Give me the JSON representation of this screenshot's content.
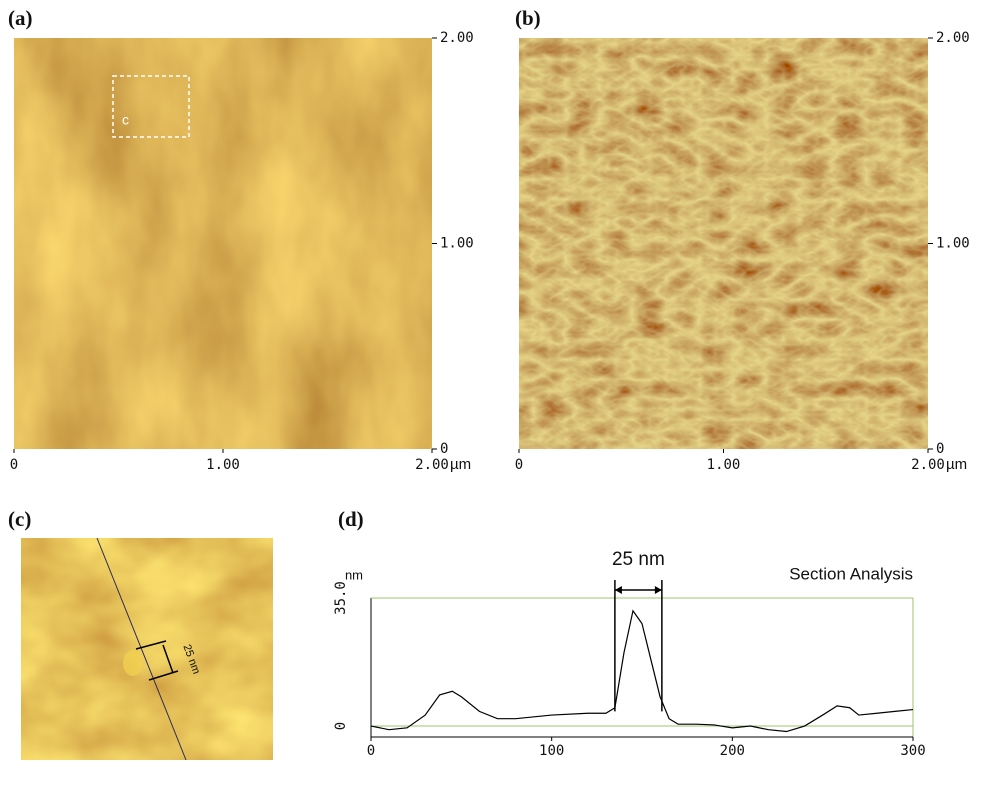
{
  "chart_data": [
    {
      "type": "image",
      "label": "(a)",
      "annotation": "c",
      "x_unit": "µm",
      "xlim": [
        0,
        2
      ],
      "ylim": [
        0,
        2
      ],
      "xticks": [
        0,
        {
          "value": 1,
          "label": "1.00"
        },
        {
          "value": 2,
          "label": "2.00"
        }
      ],
      "yticks": [
        0,
        {
          "value": 1,
          "label": "1.00"
        },
        {
          "value": 2,
          "label": "2.00"
        }
      ]
    },
    {
      "type": "image",
      "label": "(b)",
      "x_unit": "µm",
      "xlim": [
        0,
        2
      ],
      "ylim": [
        0,
        2
      ],
      "xticks": [
        0,
        {
          "value": 1,
          "label": "1.00"
        },
        {
          "value": 2,
          "label": "2.00"
        }
      ],
      "yticks": [
        0,
        {
          "value": 1,
          "label": "1.00"
        },
        {
          "value": 2,
          "label": "2.00"
        }
      ]
    },
    {
      "type": "image",
      "label": "(c)",
      "annotation": "25 nm"
    },
    {
      "type": "line",
      "label": "(d)",
      "title": "Section Analysis",
      "ylabel": "nm",
      "annotation": "25 nm",
      "annotation_x": [
        135,
        161
      ],
      "x": [
        0,
        10,
        20,
        30,
        38,
        45,
        50,
        60,
        70,
        80,
        100,
        120,
        130,
        135,
        140,
        145,
        150,
        155,
        160,
        165,
        170,
        180,
        190,
        200,
        210,
        220,
        230,
        240,
        250,
        258,
        265,
        270,
        280,
        290,
        300
      ],
      "values": [
        0,
        -1,
        -0.5,
        3,
        8.5,
        9.5,
        8,
        4,
        2,
        2,
        3,
        3.5,
        3.5,
        5,
        20,
        31.5,
        28,
        18,
        8,
        2,
        0.5,
        0.5,
        0.3,
        -0.5,
        0,
        -1,
        -1.5,
        0,
        3,
        5.5,
        5,
        3,
        3.5,
        4,
        4.5
      ],
      "color": "#000000",
      "grid_color": "#9cc46a",
      "xlim": [
        0,
        300
      ],
      "ylim": [
        -3,
        35
      ],
      "xticks": [
        0,
        100,
        200,
        300
      ],
      "yticks": [
        0,
        {
          "value": 35,
          "label": "35.0"
        }
      ]
    }
  ]
}
